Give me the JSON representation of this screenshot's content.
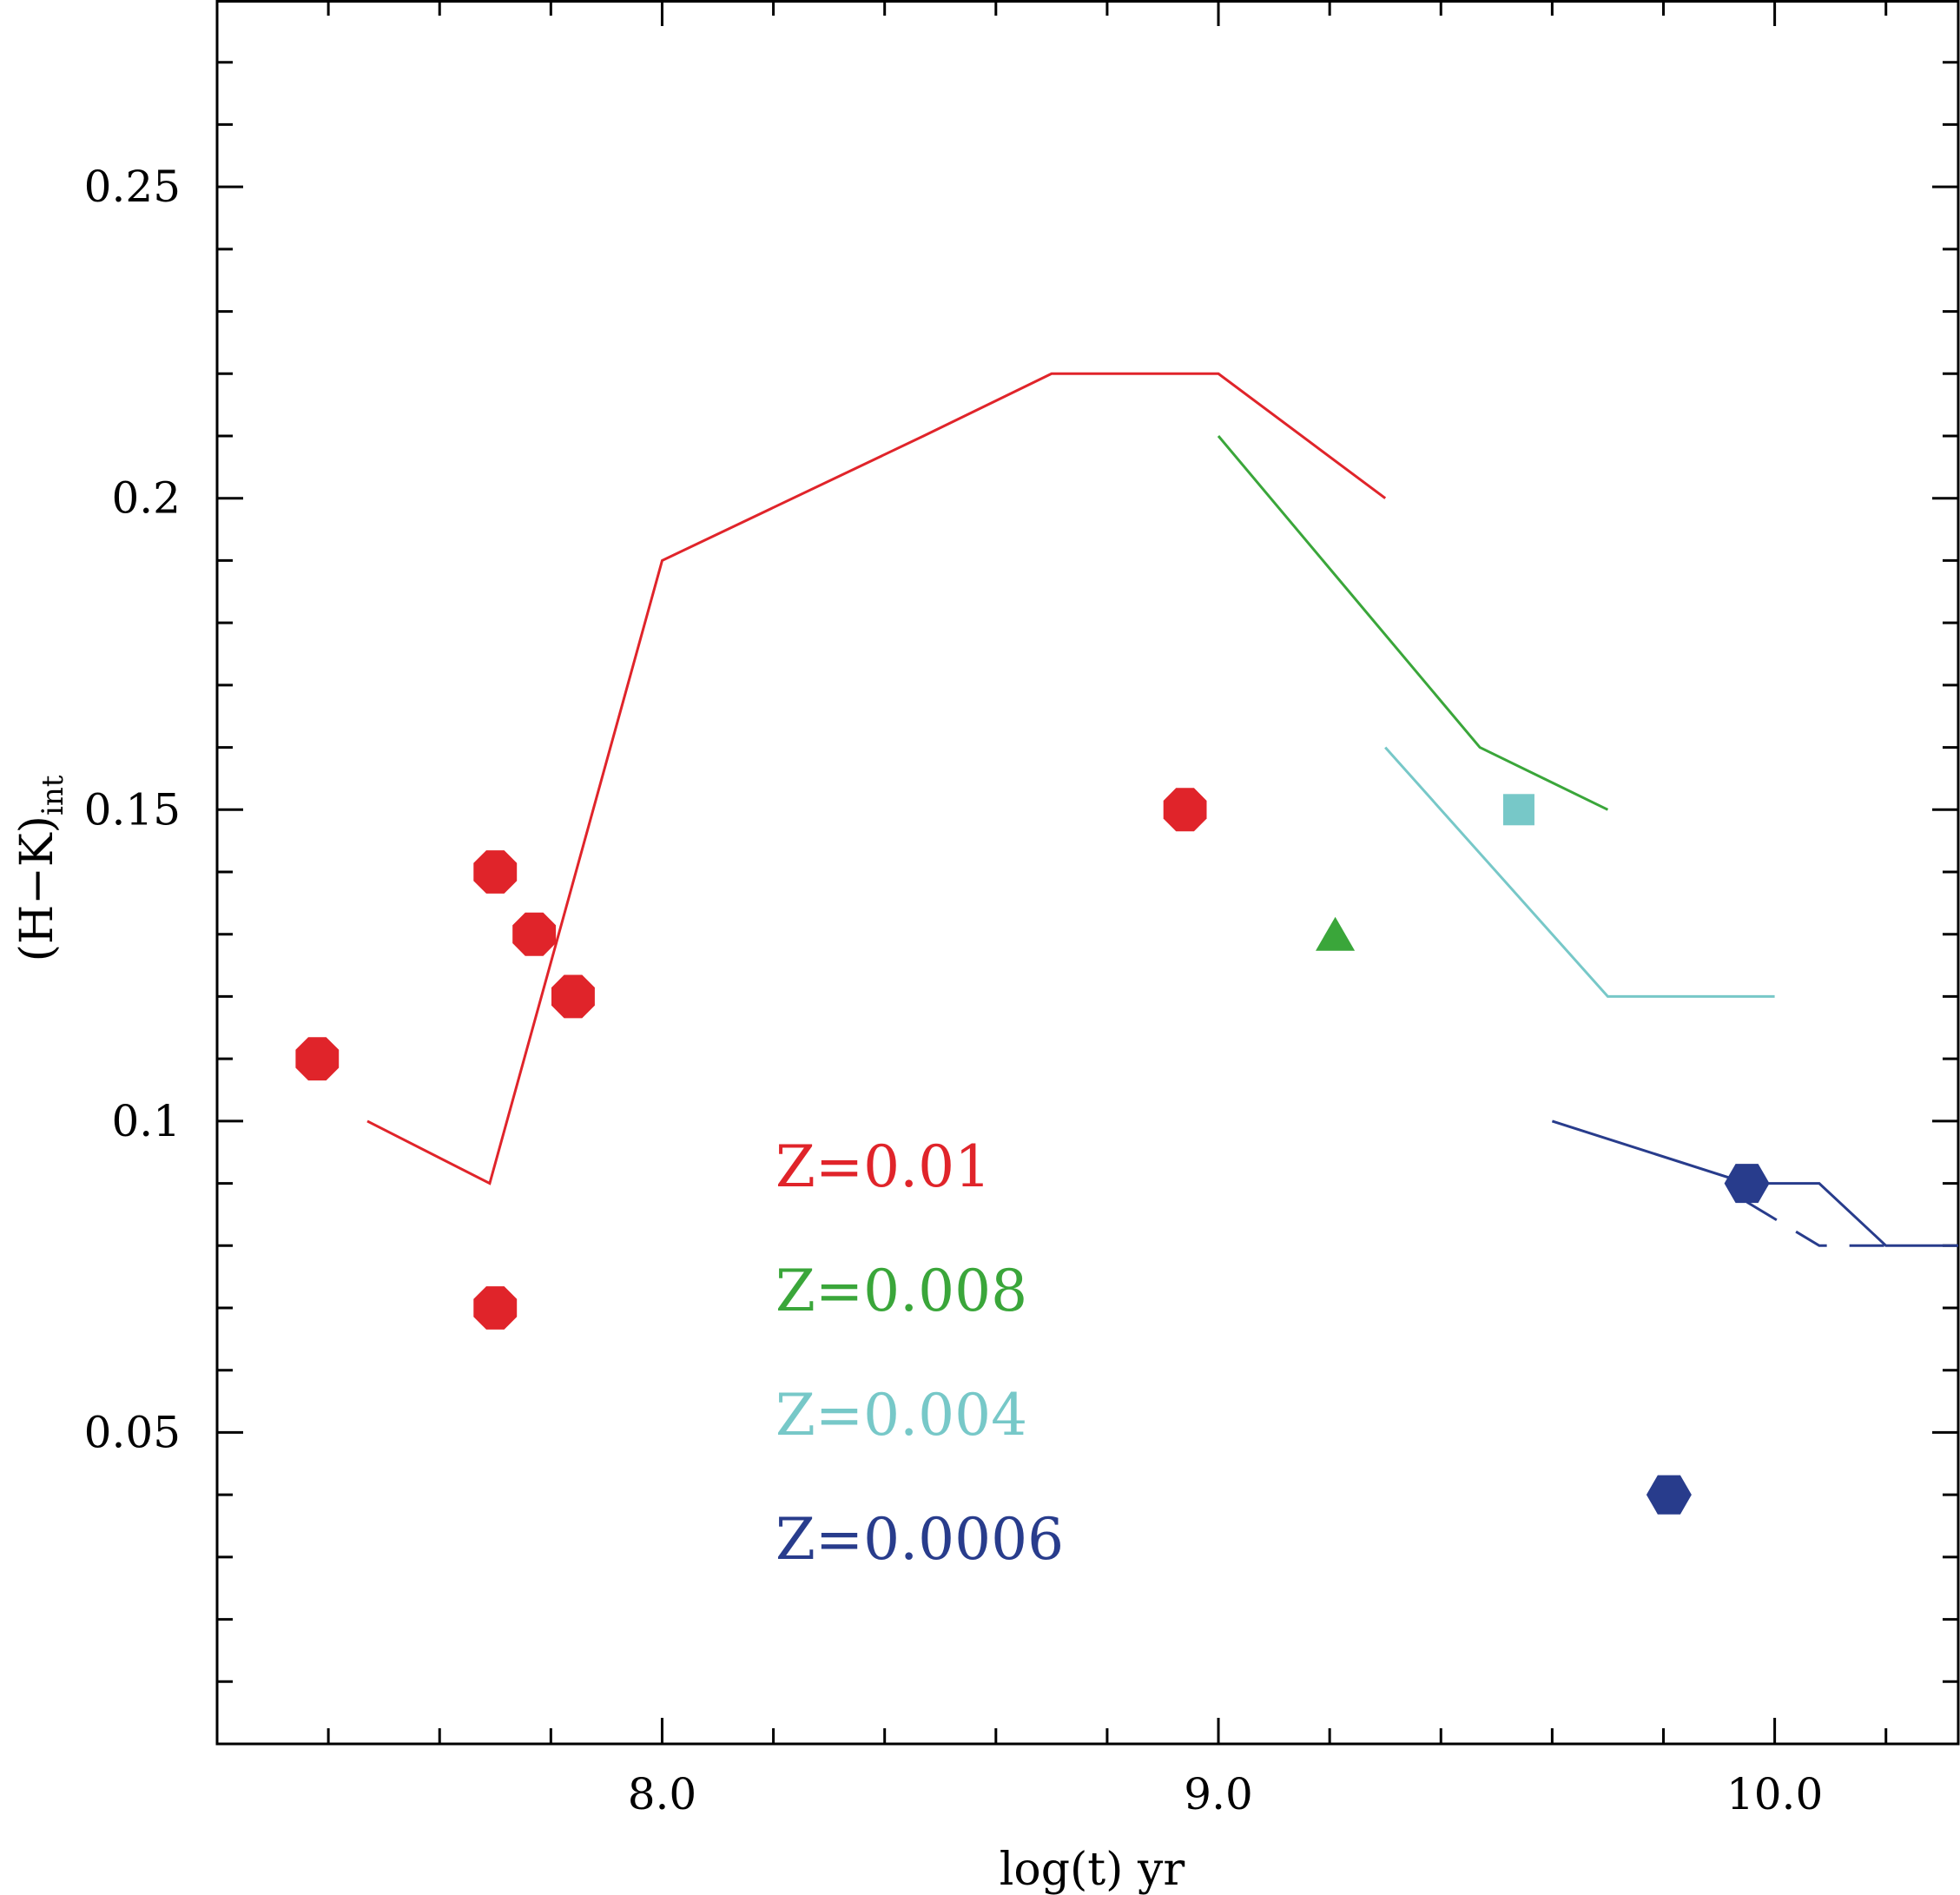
{
  "chart_data": {
    "type": "scatter",
    "title": "",
    "xlabel": "log(t)  yr",
    "ylabel_main": "(H−K)",
    "ylabel_sub": "int",
    "xlim": [
      7.2,
      10.33
    ],
    "ylim": [
      0.0,
      0.28
    ],
    "grid": false,
    "x_ticks": [
      {
        "value": 8.0,
        "label": "8.0"
      },
      {
        "value": 9.0,
        "label": "9.0"
      },
      {
        "value": 10.0,
        "label": "10.0"
      }
    ],
    "x_minor_step": 0.2,
    "y_ticks": [
      {
        "value": 0.05,
        "label": "0.05"
      },
      {
        "value": 0.1,
        "label": "0.1"
      },
      {
        "value": 0.15,
        "label": "0.15"
      },
      {
        "value": 0.2,
        "label": "0.2"
      },
      {
        "value": 0.25,
        "label": "0.25"
      }
    ],
    "y_minor_step": 0.01,
    "series": [
      {
        "name": "Z=0.01",
        "color": "#e0242a",
        "marker": "octagon",
        "line": [
          [
            7.47,
            0.1
          ],
          [
            7.69,
            0.09
          ],
          [
            8.0,
            0.19
          ],
          [
            8.47,
            0.21
          ],
          [
            8.7,
            0.22
          ],
          [
            9.0,
            0.22
          ],
          [
            9.3,
            0.2
          ]
        ],
        "points": [
          [
            7.38,
            0.11
          ],
          [
            7.7,
            0.14
          ],
          [
            7.77,
            0.13
          ],
          [
            7.84,
            0.12
          ],
          [
            7.7,
            0.07
          ],
          [
            8.94,
            0.15
          ]
        ]
      },
      {
        "name": "Z=0.008",
        "color": "#3aa63a",
        "marker": "triangle",
        "line": [
          [
            9.0,
            0.21
          ],
          [
            9.47,
            0.16
          ],
          [
            9.7,
            0.15
          ]
        ],
        "points": [
          [
            9.21,
            0.13
          ]
        ]
      },
      {
        "name": "Z=0.004",
        "color": "#77c8c8",
        "marker": "square",
        "line": [
          [
            9.3,
            0.16
          ],
          [
            9.7,
            0.12
          ],
          [
            10.0,
            0.12
          ]
        ],
        "points": [
          [
            9.54,
            0.15
          ]
        ]
      },
      {
        "name": "Z=0.0006",
        "color": "#283c8c",
        "marker": "hexagon",
        "line": [
          [
            9.6,
            0.1
          ],
          [
            9.95,
            0.09
          ],
          [
            10.08,
            0.09
          ],
          [
            10.2,
            0.08
          ],
          [
            10.33,
            0.08
          ]
        ],
        "dashed_line": [
          [
            9.95,
            0.087
          ],
          [
            10.08,
            0.08
          ],
          [
            10.2,
            0.08
          ]
        ],
        "points": [
          [
            9.95,
            0.09
          ],
          [
            9.81,
            0.04
          ]
        ]
      }
    ],
    "legend": [
      {
        "label": "Z=0.01",
        "color": "#e0242a"
      },
      {
        "label": "Z=0.008",
        "color": "#3aa63a"
      },
      {
        "label": "Z=0.004",
        "color": "#77c8c8"
      },
      {
        "label": "Z=0.0006",
        "color": "#283c8c"
      }
    ],
    "legend_position": "bottom-center"
  }
}
